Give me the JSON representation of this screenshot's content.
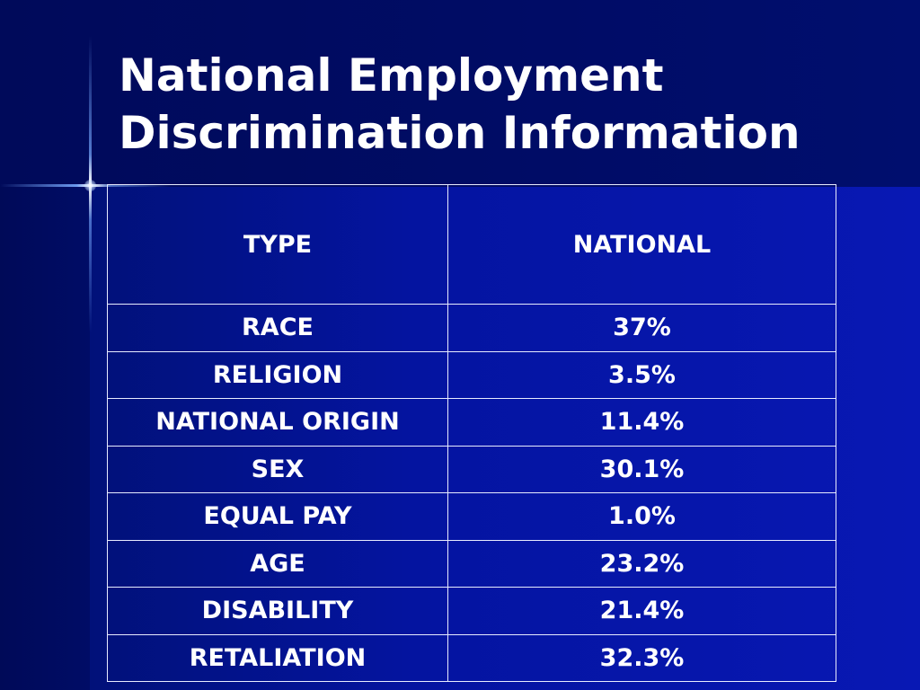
{
  "slide": {
    "title_line1": "National Employment",
    "title_line2": "Discrimination Information"
  },
  "table": {
    "headers": [
      "TYPE",
      "NATIONAL"
    ],
    "rows": [
      [
        "RACE",
        "37%"
      ],
      [
        "RELIGION",
        "3.5%"
      ],
      [
        "NATIONAL ORIGIN",
        "11.4%"
      ],
      [
        "SEX",
        "30.1%"
      ],
      [
        "EQUAL PAY",
        "1.0%"
      ],
      [
        "AGE",
        "23.2%"
      ],
      [
        "DISABILITY",
        "21.4%"
      ],
      [
        "RETALIATION",
        "32.3%"
      ]
    ]
  },
  "colors": {
    "background": "#0a1c9c",
    "title_band": "#000c66",
    "text": "#ffffff",
    "grid": "#e8ecff"
  }
}
